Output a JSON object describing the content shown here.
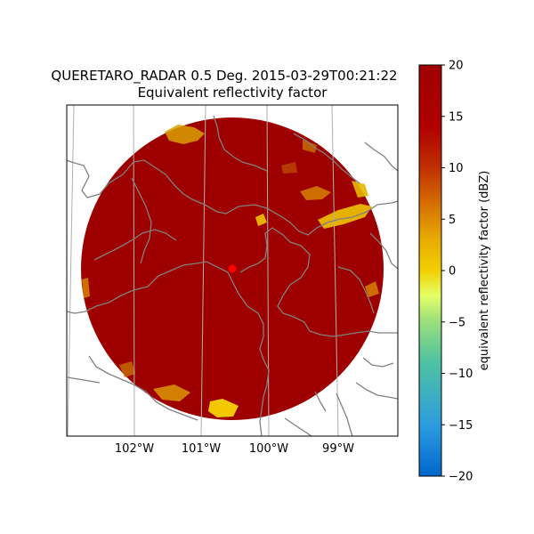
{
  "title": {
    "line1": "QUERETARO_RADAR 0.5 Deg. 2015-03-29T00:21:22",
    "line2": "Equivalent reflectivity factor"
  },
  "map": {
    "longitude_ticks": [
      "102°W",
      "101°W",
      "100°W",
      "99°W"
    ],
    "radar_site_color": "#ff0000",
    "dominant_reflectivity_color": "#9e0000",
    "border_color": "#808080",
    "gridline_color": "#b0b0b0"
  },
  "colorbar": {
    "label": "equivalent reflectivity factor (dBZ)",
    "min": -20,
    "max": 20,
    "ticks": [
      "20",
      "15",
      "10",
      "5",
      "0",
      "−5",
      "−10",
      "−15",
      "−20"
    ],
    "colormap": [
      "#0066cc",
      "#2b9be0",
      "#4fc3a1",
      "#9fe07a",
      "#e6ff66",
      "#f2d000",
      "#e6a800",
      "#d67000",
      "#c03000",
      "#b00000",
      "#9e0000"
    ]
  }
}
